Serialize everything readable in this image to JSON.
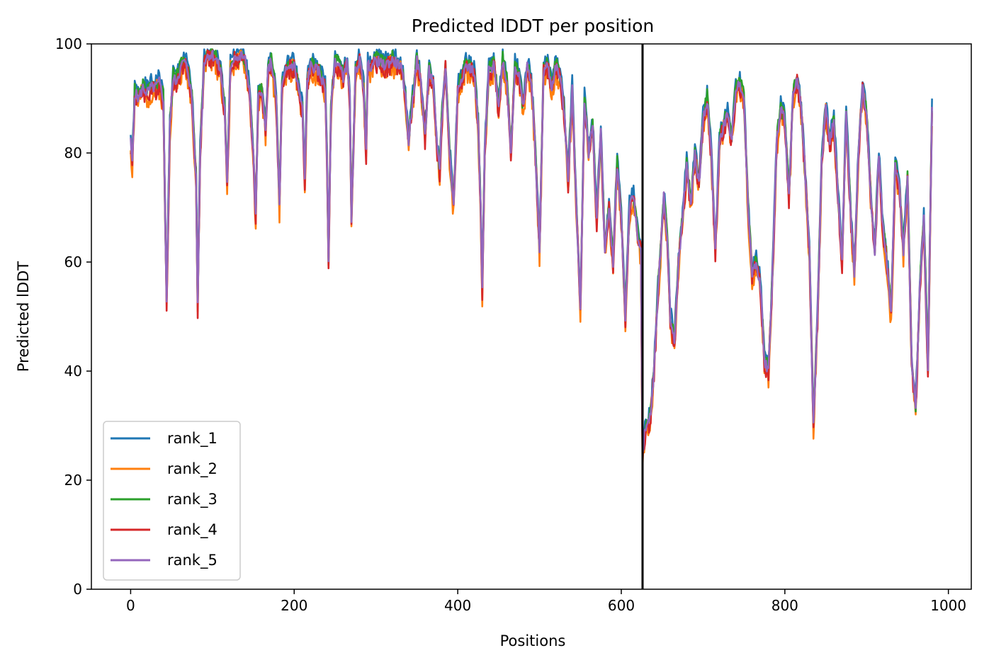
{
  "chart_data": {
    "type": "line",
    "title": "Predicted lDDT per position",
    "xlabel": "Positions",
    "ylabel": "Predicted lDDT",
    "xlim": [
      -48,
      1028
    ],
    "ylim": [
      0,
      100
    ],
    "xticks": [
      0,
      200,
      400,
      600,
      800,
      1000
    ],
    "yticks": [
      0,
      20,
      40,
      60,
      80,
      100
    ],
    "chain_boundary_x": 626,
    "legend_position": "lower-left",
    "grid": false,
    "series": [
      {
        "name": "rank_1",
        "color": "#1f77b4",
        "offset": 1.2,
        "noise": 1.3
      },
      {
        "name": "rank_2",
        "color": "#ff7f0e",
        "offset": -1.0,
        "noise": 2.2
      },
      {
        "name": "rank_3",
        "color": "#2ca02c",
        "offset": 0.4,
        "noise": 1.4
      },
      {
        "name": "rank_4",
        "color": "#d62728",
        "offset": -0.6,
        "noise": 1.8
      },
      {
        "name": "rank_5",
        "color": "#9467bd",
        "offset": 0.0,
        "noise": 1.0
      }
    ],
    "profile_x": [
      0,
      2,
      5,
      10,
      15,
      20,
      25,
      30,
      35,
      40,
      42,
      44,
      48,
      52,
      55,
      60,
      65,
      70,
      75,
      80,
      82,
      85,
      90,
      95,
      100,
      105,
      110,
      115,
      118,
      122,
      128,
      132,
      136,
      140,
      145,
      150,
      153,
      156,
      160,
      165,
      168,
      172,
      178,
      182,
      185,
      190,
      195,
      200,
      205,
      210,
      213,
      216,
      220,
      230,
      238,
      240,
      242,
      245,
      250,
      255,
      260,
      265,
      268,
      270,
      275,
      280,
      285,
      288,
      290,
      295,
      300,
      310,
      320,
      330,
      335,
      340,
      345,
      350,
      355,
      360,
      365,
      370,
      375,
      378,
      380,
      385,
      390,
      395,
      400,
      410,
      420,
      425,
      428,
      430,
      433,
      438,
      445,
      450,
      455,
      460,
      465,
      470,
      475,
      480,
      485,
      490,
      495,
      500,
      505,
      510,
      515,
      520,
      525,
      530,
      535,
      540,
      545,
      550,
      555,
      560,
      565,
      570,
      575,
      580,
      585,
      590,
      595,
      600,
      605,
      610,
      615,
      620,
      624,
      626,
      628,
      632,
      636,
      640,
      645,
      648,
      652,
      656,
      660,
      665,
      670,
      675,
      680,
      685,
      690,
      695,
      700,
      705,
      710,
      715,
      720,
      725,
      730,
      735,
      740,
      745,
      750,
      755,
      760,
      765,
      770,
      775,
      780,
      785,
      790,
      795,
      800,
      805,
      810,
      815,
      820,
      825,
      830,
      835,
      840,
      845,
      850,
      855,
      860,
      865,
      870,
      875,
      880,
      885,
      890,
      895,
      900,
      905,
      910,
      915,
      920,
      925,
      930,
      935,
      940,
      945,
      950,
      955,
      960,
      965,
      970,
      975,
      980
    ],
    "profile_y": [
      82,
      78,
      91,
      90,
      92,
      91,
      92,
      92,
      93,
      90,
      70,
      53,
      85,
      94,
      93,
      95,
      97,
      95,
      90,
      75,
      52,
      80,
      97,
      98,
      98,
      97,
      95,
      88,
      74,
      96,
      98,
      97,
      98,
      97,
      92,
      80,
      68,
      90,
      92,
      84,
      95,
      97,
      90,
      70,
      92,
      95,
      96,
      96,
      92,
      88,
      75,
      93,
      96,
      95,
      92,
      80,
      60,
      88,
      97,
      96,
      94,
      97,
      90,
      67,
      95,
      97,
      92,
      80,
      96,
      96,
      97,
      96,
      97,
      96,
      92,
      82,
      90,
      97,
      93,
      83,
      95,
      93,
      80,
      77,
      85,
      96,
      80,
      70,
      92,
      96,
      95,
      85,
      70,
      55,
      80,
      95,
      96,
      88,
      97,
      93,
      80,
      96,
      94,
      88,
      96,
      93,
      80,
      62,
      95,
      96,
      92,
      96,
      94,
      88,
      75,
      92,
      70,
      52,
      90,
      80,
      85,
      68,
      84,
      62,
      70,
      60,
      78,
      68,
      50,
      70,
      72,
      65,
      62,
      24,
      28,
      30,
      32,
      40,
      55,
      62,
      72,
      65,
      50,
      45,
      60,
      68,
      78,
      70,
      80,
      74,
      86,
      90,
      80,
      62,
      82,
      85,
      87,
      82,
      92,
      93,
      90,
      70,
      58,
      60,
      56,
      42,
      40,
      58,
      82,
      88,
      86,
      72,
      90,
      94,
      88,
      76,
      62,
      30,
      50,
      78,
      88,
      82,
      86,
      72,
      60,
      88,
      70,
      58,
      80,
      92,
      87,
      72,
      62,
      80,
      66,
      60,
      50,
      78,
      74,
      62,
      75,
      42,
      33,
      55,
      68,
      40,
      88
    ]
  }
}
